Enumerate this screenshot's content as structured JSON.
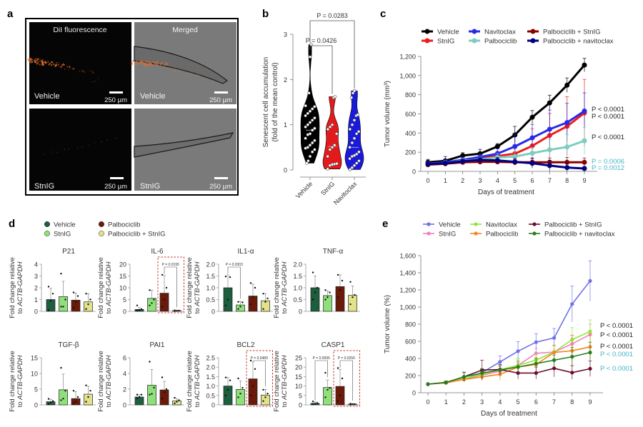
{
  "panel_labels": {
    "a": "a",
    "b": "b",
    "c": "c",
    "d": "d",
    "e": "e"
  },
  "panel_a": {
    "col_titles": [
      "DiI fluorescence",
      "Merged"
    ],
    "row_labels": [
      "Vehicle",
      "StnIG"
    ],
    "scale_bar": "250 µm",
    "colors": {
      "fluor_bg": "#050505",
      "merged_bg": "#7a7a7a",
      "signal": "#e8702a"
    }
  },
  "chart_data": [
    {
      "id": "b",
      "type": "violin",
      "ylabel_line1": "Senescent cell accumulation",
      "ylabel_line2": "(fold of the mean control)",
      "categories": [
        "Vehicle",
        "StnIG",
        "Navitoclax"
      ],
      "colors": [
        "#000000",
        "#e31a1c",
        "#1a1adb"
      ],
      "ylim": [
        0,
        3
      ],
      "yticks": [
        0,
        1,
        2,
        3
      ],
      "points": [
        [
          0.15,
          0.2,
          0.3,
          0.4,
          0.45,
          0.48,
          0.5,
          0.55,
          0.6,
          0.65,
          0.7,
          0.78,
          0.8,
          0.88,
          0.92,
          0.95,
          1.0,
          1.05,
          1.1,
          1.15,
          1.2,
          1.25,
          1.3,
          1.35,
          1.4,
          1.42,
          1.7,
          2.5,
          2.77
        ],
        [
          0.02,
          0.1,
          0.12,
          0.13,
          0.14,
          0.3,
          0.45,
          0.5,
          0.55,
          0.8,
          0.9,
          0.95,
          1.0,
          1.6,
          1.62
        ],
        [
          0.01,
          0.05,
          0.1,
          0.15,
          0.2,
          0.25,
          0.3,
          0.32,
          0.35,
          0.4,
          0.5,
          0.6,
          0.7,
          0.8,
          0.85,
          0.9,
          1.0,
          1.1,
          1.2,
          1.22,
          1.6,
          1.7,
          1.75
        ]
      ],
      "medians": [
        0.88,
        0.52,
        0.5
      ],
      "annotations": [
        {
          "label": "P = 0.0426",
          "from": 0,
          "to": 1
        },
        {
          "label": "P = 0.0283",
          "from": 0,
          "to": 2
        }
      ]
    },
    {
      "id": "c",
      "type": "line",
      "xlabel": "Days of treatment",
      "ylabel": "Tumor volume (mm³)",
      "x": [
        0,
        1,
        2,
        3,
        4,
        5,
        6,
        7,
        8,
        9
      ],
      "xlim": [
        0,
        9
      ],
      "ylim": [
        0,
        1200
      ],
      "yticks": [
        0,
        200,
        400,
        600,
        800,
        1000,
        1200
      ],
      "ytick_labels": [
        "0",
        "200",
        "400",
        "600",
        "800",
        "1,000",
        "1,200"
      ],
      "legend": "top",
      "series": [
        {
          "name": "Vehicle",
          "color": "#000000",
          "values": [
            95,
            110,
            165,
            185,
            260,
            380,
            565,
            715,
            900,
            1110
          ],
          "err": [
            30,
            45,
            30,
            45,
            30,
            90,
            70,
            80,
            75,
            70
          ]
        },
        {
          "name": "StnIG",
          "color": "#ee1c1c",
          "values": [
            80,
            90,
            115,
            135,
            160,
            185,
            265,
            375,
            470,
            610
          ],
          "err": [
            20,
            25,
            30,
            30,
            50,
            90,
            180,
            230,
            310,
            350
          ]
        },
        {
          "name": "Navitoclax",
          "color": "#2a2ae6",
          "values": [
            80,
            95,
            120,
            150,
            185,
            260,
            350,
            440,
            510,
            630
          ],
          "err": [
            20,
            25,
            30,
            30,
            50,
            130,
            140,
            200,
            200,
            190
          ]
        },
        {
          "name": "Palbociclib",
          "color": "#7ecdc0",
          "values": [
            75,
            85,
            110,
            125,
            145,
            155,
            190,
            225,
            255,
            320
          ],
          "err": [
            15,
            25,
            25,
            30,
            40,
            70,
            60,
            110,
            130,
            140
          ]
        },
        {
          "name": "Palbociclib + StnIG",
          "color": "#8b0000",
          "values": [
            70,
            80,
            95,
            100,
            100,
            95,
            95,
            95,
            95,
            95
          ],
          "err": [
            15,
            15,
            20,
            20,
            25,
            30,
            45,
            45,
            50,
            45
          ]
        },
        {
          "name": "Palbociclib + navitoclax",
          "color": "#000080",
          "values": [
            75,
            85,
            105,
            120,
            115,
            100,
            85,
            60,
            40,
            30
          ],
          "err": [
            15,
            20,
            20,
            30,
            30,
            35,
            50,
            55,
            45,
            20
          ]
        }
      ],
      "p_values": [
        {
          "label": "P < 0.0001",
          "color": "#222222"
        },
        {
          "label": "P < 0.0001",
          "color": "#222222"
        },
        {
          "label": "P < 0.0001",
          "color": "#222222"
        },
        {
          "label": "P = 0.0006",
          "color": "#4ab5c4"
        },
        {
          "label": "P = 0.0012",
          "color": "#4ab5c4"
        }
      ]
    },
    {
      "id": "d",
      "type": "bar",
      "ylabel_line1": "Fold change relative",
      "ylabel_line2": "to ACTB-GAPDH",
      "legend": [
        {
          "name": "Vehicle",
          "color": "#1d5e3f"
        },
        {
          "name": "StnIG",
          "color": "#8fe07a"
        },
        {
          "name": "Palbociclib",
          "color": "#6b1a0a"
        },
        {
          "name": "Palbociclib + StnIG",
          "color": "#e2e28a"
        }
      ],
      "panels": [
        {
          "title": "P21",
          "ylim": [
            0,
            4
          ],
          "yticks": [
            "0",
            "1",
            "2",
            "3",
            "4"
          ],
          "values": [
            1.0,
            1.25,
            0.95,
            0.8
          ],
          "err": [
            0.95,
            1.3,
            0.6,
            0.7
          ],
          "points": [
            [
              0.1,
              0.9,
              1.5,
              2.1
            ],
            [
              0.4,
              0.4,
              1.0,
              3.2
            ],
            [
              0.3,
              0.8,
              1.3,
              1.6
            ],
            [
              0.2,
              0.6,
              1.0,
              1.5
            ]
          ]
        },
        {
          "title": "IL-6",
          "ylim": [
            0,
            20
          ],
          "yticks": [
            "0",
            "5",
            "10",
            "15",
            "20"
          ],
          "values": [
            0.8,
            5.5,
            7.7,
            0.3
          ],
          "err": [
            0.8,
            3.5,
            7.5,
            0.2
          ],
          "points": [
            [
              0.3,
              0.5,
              0.9,
              2.5
            ],
            [
              2.5,
              3.5,
              5,
              9
            ],
            [
              2,
              5,
              10,
              15.5
            ],
            [
              0.1,
              0.2,
              0.3,
              0.4
            ]
          ],
          "box": [
            2,
            3
          ],
          "p": {
            "label": "P = 0.0195",
            "from": 2,
            "to": 3
          }
        },
        {
          "title": "IL1-α",
          "ylim": [
            0,
            2
          ],
          "yticks": [
            "0",
            "0.5",
            "1.0",
            "1.5",
            "2.0"
          ],
          "values": [
            1.0,
            0.27,
            0.65,
            0.45
          ],
          "err": [
            0.55,
            0.15,
            0.5,
            0.3
          ],
          "points": [
            [
              0.25,
              0.5,
              1.45,
              1.48
            ],
            [
              0.1,
              0.2,
              0.38,
              0.4
            ],
            [
              0.3,
              0.6,
              1.0,
              1.2
            ],
            [
              0.1,
              0.4,
              0.55,
              0.75
            ]
          ],
          "p": {
            "label": "P = 0.0303",
            "from": 0,
            "to": 1
          }
        },
        {
          "title": "TNF-α",
          "ylim": [
            0,
            2
          ],
          "yticks": [
            "0",
            "0.5",
            "1.0",
            "1.5",
            "2.0"
          ],
          "values": [
            1.0,
            0.67,
            1.05,
            0.68
          ],
          "err": [
            0.5,
            0.2,
            0.5,
            0.4
          ],
          "points": [
            [
              0.5,
              0.8,
              1.0,
              1.65
            ],
            [
              0.5,
              0.6,
              0.8,
              0.9
            ],
            [
              0.6,
              0.9,
              1.3,
              1.55
            ],
            [
              0.3,
              0.6,
              0.7,
              1.25
            ]
          ]
        },
        {
          "title": "TGF-β",
          "ylim": [
            0,
            15
          ],
          "yticks": [
            "0",
            "5",
            "10",
            "15"
          ],
          "values": [
            1.0,
            4.8,
            2.0,
            3.4
          ],
          "err": [
            0.8,
            5.0,
            2.2,
            2.5
          ],
          "points": [
            [
              0.3,
              0.7,
              1.2,
              1.9
            ],
            [
              1.5,
              2.0,
              4.5,
              11.8
            ],
            [
              0.5,
              1.0,
              2.5,
              4.5
            ],
            [
              1.0,
              2.5,
              4.5,
              6.2
            ]
          ]
        },
        {
          "title": "PAI1",
          "ylim": [
            0,
            6
          ],
          "yticks": [
            "0",
            "2",
            "4",
            "6"
          ],
          "values": [
            1.0,
            2.5,
            1.9,
            0.5
          ],
          "err": [
            0.3,
            2.0,
            1.1,
            0.3
          ],
          "points": [
            [
              0.8,
              1.0,
              1.3,
              1.3
            ],
            [
              1.3,
              1.4,
              2.2,
              5.5
            ],
            [
              0.8,
              1.6,
              2.0,
              3.5
            ],
            [
              0.2,
              0.4,
              0.6,
              0.9
            ]
          ]
        },
        {
          "title": "BCL2",
          "ylim": [
            0,
            2.5
          ],
          "yticks": [
            "0",
            "0.5",
            "1.0",
            "1.5",
            "2.0",
            "2.5"
          ],
          "values": [
            1.0,
            0.82,
            1.38,
            0.52
          ],
          "err": [
            0.45,
            0.45,
            0.9,
            0.3
          ],
          "points": [
            [
              0.5,
              0.8,
              1.3,
              1.45
            ],
            [
              0.4,
              0.6,
              0.9,
              1.4
            ],
            [
              0.5,
              1.0,
              1.9,
              2.35
            ],
            [
              0.2,
              0.4,
              0.6,
              0.8
            ]
          ],
          "box": [
            2,
            3
          ],
          "p": {
            "label": "P = 0.0489",
            "from": 2,
            "to": 3
          }
        },
        {
          "title": "CASP1",
          "ylim": [
            0,
            25
          ],
          "yticks": [
            "0",
            "5",
            "10",
            "15",
            "20",
            "25"
          ],
          "values": [
            0.8,
            9.2,
            9.8,
            0.4
          ],
          "err": [
            0.7,
            4.0,
            9.0,
            0.3
          ],
          "points": [
            [
              0.3,
              0.6,
              1.0,
              1.8
            ],
            [
              4,
              8,
              9,
              17
            ],
            [
              2,
              5,
              14,
              19.5
            ],
            [
              0.1,
              0.3,
              0.4,
              0.6
            ]
          ],
          "box": [
            2,
            3
          ],
          "p": {
            "label": "P = 0.0095",
            "from": 0,
            "to": 1
          },
          "p2": {
            "label": "P = 0.0256",
            "from": 2,
            "to": 3
          }
        }
      ]
    },
    {
      "id": "e",
      "type": "line",
      "xlabel": "Days of treatment",
      "ylabel": "Tumor volume (%)",
      "x": [
        0,
        1,
        2,
        3,
        4,
        5,
        6,
        7,
        8,
        9
      ],
      "xlim": [
        0,
        9
      ],
      "ylim": [
        0,
        1600
      ],
      "yticks": [
        0,
        200,
        400,
        600,
        800,
        1000,
        1200,
        1400,
        1600
      ],
      "ytick_labels": [
        "0",
        "200",
        "400",
        "600",
        "800",
        "1,000",
        "1,200",
        "1,400",
        "1,600"
      ],
      "legend": "top",
      "series": [
        {
          "name": "Vehicle",
          "color": "#6f72e6",
          "values": [
            100,
            120,
            155,
            235,
            360,
            485,
            590,
            640,
            1035,
            1305
          ],
          "err": [
            8,
            15,
            20,
            40,
            70,
            110,
            100,
            110,
            210,
            235
          ]
        },
        {
          "name": "StnIG",
          "color": "#f07fbf",
          "values": [
            100,
            115,
            160,
            205,
            250,
            320,
            460,
            475,
            570,
            680
          ],
          "err": [
            8,
            15,
            25,
            40,
            60,
            80,
            60,
            80,
            100,
            120
          ]
        },
        {
          "name": "Navitoclax",
          "color": "#8ee83a",
          "values": [
            100,
            120,
            165,
            215,
            270,
            320,
            380,
            475,
            620,
            715
          ],
          "err": [
            8,
            15,
            25,
            40,
            60,
            80,
            80,
            80,
            140,
            135
          ]
        },
        {
          "name": "Palbociclib",
          "color": "#f5861f",
          "values": [
            100,
            115,
            155,
            185,
            215,
            300,
            330,
            470,
            490,
            535
          ],
          "err": [
            8,
            15,
            25,
            40,
            70,
            80,
            80,
            80,
            180,
            150
          ]
        },
        {
          "name": "Palbociclib + StnIG",
          "color": "#6b0d2e",
          "values": [
            100,
            120,
            185,
            265,
            270,
            230,
            230,
            285,
            235,
            280
          ],
          "err": [
            8,
            15,
            55,
            115,
            60,
            70,
            70,
            100,
            80,
            90
          ]
        },
        {
          "name": "Palbociclib + navitoclax",
          "color": "#2a7d1a",
          "values": [
            100,
            120,
            185,
            230,
            265,
            300,
            340,
            380,
            420,
            470
          ],
          "err": [
            8,
            15,
            50,
            50,
            50,
            60,
            60,
            60,
            110,
            120
          ]
        }
      ],
      "p_values": [
        {
          "label": "P < 0.0001",
          "color": "#222222"
        },
        {
          "label": "P < 0.0001",
          "color": "#222222"
        },
        {
          "label": "P < 0.0001",
          "color": "#222222"
        },
        {
          "label": "P < 0.0001",
          "color": "#3fb5c8"
        },
        {
          "label": "P < 0.0001",
          "color": "#3fb5c8"
        }
      ]
    }
  ]
}
